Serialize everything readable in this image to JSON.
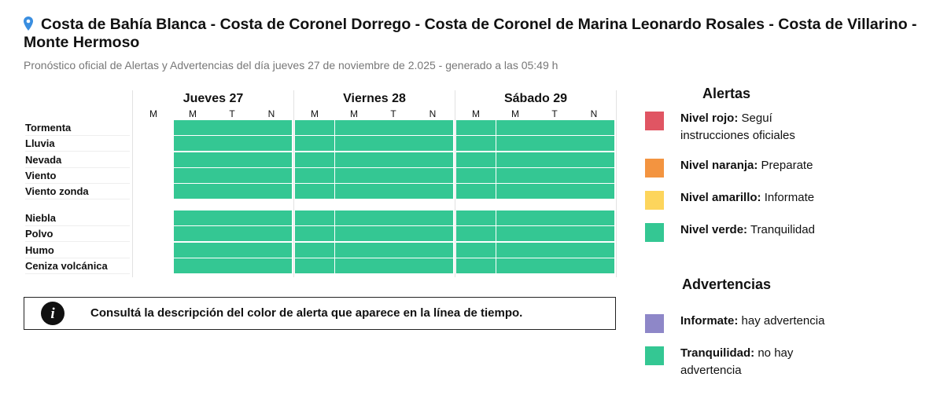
{
  "header": {
    "title": "Costa de Bahía Blanca - Costa de Coronel Dorrego - Costa de Coronel de Marina Leonardo Rosales - Costa de Villarino - Monte Hermoso",
    "subtitle": "Pronóstico oficial de Alertas y Advertencias del día jueves 27 de noviembre de 2.025 - generado a las 05:49 h"
  },
  "table": {
    "days": [
      {
        "name": "Jueves 27",
        "periods": [
          "M",
          "M",
          "T",
          "N"
        ]
      },
      {
        "name": "Viernes 28",
        "periods": [
          "M",
          "M",
          "T",
          "N"
        ]
      },
      {
        "name": "Sábado 29",
        "periods": [
          "M",
          "M",
          "T",
          "N"
        ]
      }
    ],
    "groups": [
      [
        {
          "label": "Tormenta",
          "cells": [
            null,
            "#34c793",
            "#34c793",
            "#34c793",
            "#34c793",
            "#34c793",
            "#34c793",
            "#34c793",
            "#34c793",
            "#34c793",
            "#34c793",
            "#34c793"
          ]
        },
        {
          "label": "Lluvia",
          "cells": [
            null,
            "#34c793",
            "#34c793",
            "#34c793",
            "#34c793",
            "#34c793",
            "#34c793",
            "#34c793",
            "#34c793",
            "#34c793",
            "#34c793",
            "#34c793"
          ]
        },
        {
          "label": "Nevada",
          "cells": [
            null,
            "#34c793",
            "#34c793",
            "#34c793",
            "#34c793",
            "#34c793",
            "#34c793",
            "#34c793",
            "#34c793",
            "#34c793",
            "#34c793",
            "#34c793"
          ]
        },
        {
          "label": "Viento",
          "cells": [
            null,
            "#34c793",
            "#34c793",
            "#34c793",
            "#34c793",
            "#34c793",
            "#34c793",
            "#34c793",
            "#34c793",
            "#34c793",
            "#34c793",
            "#34c793"
          ]
        },
        {
          "label": "Viento zonda",
          "cells": [
            null,
            "#34c793",
            "#34c793",
            "#34c793",
            "#34c793",
            "#34c793",
            "#34c793",
            "#34c793",
            "#34c793",
            "#34c793",
            "#34c793",
            "#34c793"
          ]
        }
      ],
      [
        {
          "label": "Niebla",
          "cells": [
            null,
            "#34c793",
            "#34c793",
            "#34c793",
            "#34c793",
            "#34c793",
            "#34c793",
            "#34c793",
            "#34c793",
            "#34c793",
            "#34c793",
            "#34c793"
          ]
        },
        {
          "label": "Polvo",
          "cells": [
            null,
            "#34c793",
            "#34c793",
            "#34c793",
            "#34c793",
            "#34c793",
            "#34c793",
            "#34c793",
            "#34c793",
            "#34c793",
            "#34c793",
            "#34c793"
          ]
        },
        {
          "label": "Humo",
          "cells": [
            null,
            "#34c793",
            "#34c793",
            "#34c793",
            "#34c793",
            "#34c793",
            "#34c793",
            "#34c793",
            "#34c793",
            "#34c793",
            "#34c793",
            "#34c793"
          ]
        },
        {
          "label": "Ceniza volcánica",
          "cells": [
            null,
            "#34c793",
            "#34c793",
            "#34c793",
            "#34c793",
            "#34c793",
            "#34c793",
            "#34c793",
            "#34c793",
            "#34c793",
            "#34c793",
            "#34c793"
          ]
        }
      ]
    ]
  },
  "note": "Consultá la descripción del color de alerta que aparece en la línea de tiempo.",
  "legend": {
    "alerts_title": "Alertas",
    "alerts": [
      {
        "label": "Nivel rojo:",
        "text": "Seguí instrucciones oficiales",
        "color": "#e05563"
      },
      {
        "label": "Nivel naranja:",
        "text": "Preparate",
        "color": "#f39440"
      },
      {
        "label": "Nivel amarillo:",
        "text": "Informate",
        "color": "#fdd55c"
      },
      {
        "label": "Nivel verde:",
        "text": "Tranquilidad",
        "color": "#34c793"
      }
    ],
    "warnings_title": "Advertencias",
    "warnings": [
      {
        "label": "Informate:",
        "text": "hay advertencia",
        "color": "#8e87c8"
      },
      {
        "label": "Tranquilidad:",
        "text": "no hay advertencia",
        "color": "#34c793"
      }
    ]
  }
}
